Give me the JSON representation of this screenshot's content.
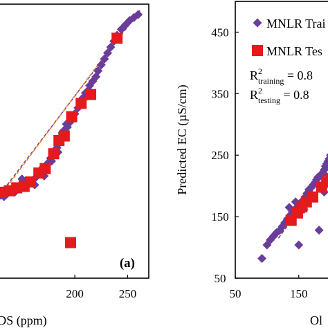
{
  "chart_data": [
    {
      "type": "scatter",
      "panel_label": "(a)",
      "xlabel": "TDS (ppm)",
      "visible_xlabel": "DS (ppm)",
      "xlim": [
        120,
        270
      ],
      "ylim": [
        100,
        470
      ],
      "x_ticks": [
        "200",
        "250"
      ],
      "x_tick_values": [
        200,
        250
      ],
      "grid": false,
      "series": [
        {
          "color": "#6a3d9a",
          "marker": "diamond",
          "points": [
            [
              122,
              205
            ],
            [
              126,
              208
            ],
            [
              130,
              212
            ],
            [
              133,
              210
            ],
            [
              136,
              214
            ],
            [
              140,
              218
            ],
            [
              143,
              216
            ],
            [
              146,
              220
            ],
            [
              149,
              223
            ],
            [
              152,
              226
            ],
            [
              155,
              229
            ],
            [
              158,
              228
            ],
            [
              160,
              232
            ],
            [
              163,
              236
            ],
            [
              165,
              240
            ],
            [
              168,
              246
            ],
            [
              170,
              250
            ],
            [
              173,
              252
            ],
            [
              175,
              256
            ],
            [
              177,
              262
            ],
            [
              179,
              266
            ],
            [
              181,
              272
            ],
            [
              183,
              276
            ],
            [
              185,
              282
            ],
            [
              186,
              290
            ],
            [
              188,
              296
            ],
            [
              189,
              292
            ],
            [
              190,
              300
            ],
            [
              193,
              304
            ],
            [
              195,
              310
            ],
            [
              198,
              316
            ],
            [
              200,
              322
            ],
            [
              203,
              330
            ],
            [
              205,
              336
            ],
            [
              208,
              344
            ],
            [
              210,
              350
            ],
            [
              212,
              346
            ],
            [
              214,
              360
            ],
            [
              217,
              366
            ],
            [
              220,
              372
            ],
            [
              222,
              380
            ],
            [
              225,
              388
            ],
            [
              228,
              396
            ],
            [
              231,
              404
            ],
            [
              234,
              412
            ],
            [
              237,
              420
            ],
            [
              240,
              428
            ],
            [
              244,
              436
            ],
            [
              248,
              442
            ],
            [
              252,
              448
            ],
            [
              256,
              452
            ],
            [
              260,
              456
            ],
            [
              150,
              234
            ],
            [
              162,
              226
            ],
            [
              171,
              238
            ],
            [
              178,
              258
            ],
            [
              184,
              270
            ],
            [
              192,
              308
            ],
            [
              196,
              318
            ],
            [
              207,
              338
            ],
            [
              213,
              354
            ]
          ]
        },
        {
          "color": "#e41a1c",
          "marker": "square",
          "points": [
            [
              124,
              210
            ],
            [
              130,
              216
            ],
            [
              138,
              218
            ],
            [
              145,
              222
            ],
            [
              152,
              224
            ],
            [
              158,
              230
            ],
            [
              166,
              242
            ],
            [
              172,
              248
            ],
            [
              180,
              268
            ],
            [
              185,
              286
            ],
            [
              190,
              292
            ],
            [
              197,
              318
            ],
            [
              206,
              336
            ],
            [
              215,
              348
            ],
            [
              240,
              424
            ],
            [
              196,
              148
            ]
          ]
        }
      ],
      "trend_lines": [
        {
          "color": "#6a3d9a",
          "style": "dashed",
          "x": [
            120,
            262
          ],
          "y": [
            196,
            462
          ]
        },
        {
          "color": "#f07f2a",
          "style": "dashed",
          "x": [
            120,
            250
          ],
          "y": [
            193,
            442
          ]
        }
      ]
    },
    {
      "type": "scatter",
      "xlabel": "Observed EC (µS/cm)",
      "visible_xlabel": "Ol",
      "ylabel": "Predicted EC (µS/cm)",
      "xlim": [
        50,
        220
      ],
      "ylim": [
        50,
        500
      ],
      "x_ticks": [
        "50",
        "150"
      ],
      "x_tick_values": [
        50,
        150
      ],
      "y_ticks": [
        "50",
        "150",
        "250",
        "350",
        "450"
      ],
      "y_tick_values": [
        50,
        150,
        250,
        350,
        450
      ],
      "grid": false,
      "legend": {
        "placement": "top-right",
        "entries": [
          "MNLR Trai",
          "MNLR Tes"
        ],
        "metrics": [
          {
            "prefix": "R",
            "sup": "2",
            "sub": "training",
            "suffix": " = 0.8"
          },
          {
            "prefix": "R",
            "sup": "2",
            "sub": "testing",
            "suffix": " = 0.8"
          }
        ]
      },
      "series": [
        {
          "color": "#6a3d9a",
          "marker": "diamond",
          "points": [
            [
              92,
              82
            ],
            [
              100,
              104
            ],
            [
              105,
              112
            ],
            [
              110,
              118
            ],
            [
              115,
              124
            ],
            [
              120,
              128
            ],
            [
              124,
              134
            ],
            [
              128,
              140
            ],
            [
              132,
              146
            ],
            [
              136,
              152
            ],
            [
              140,
              158
            ],
            [
              144,
              162
            ],
            [
              148,
              166
            ],
            [
              150,
              104
            ],
            [
              152,
              170
            ],
            [
              156,
              176
            ],
            [
              160,
              182
            ],
            [
              163,
              188
            ],
            [
              166,
              194
            ],
            [
              170,
              198
            ],
            [
              173,
              202
            ],
            [
              176,
              206
            ],
            [
              178,
              210
            ],
            [
              180,
              214
            ],
            [
              183,
              216
            ],
            [
              186,
              218
            ],
            [
              188,
              222
            ],
            [
              190,
              226
            ],
            [
              192,
              232
            ],
            [
              194,
              236
            ],
            [
              196,
              240
            ],
            [
              198,
              244
            ],
            [
              200,
              250
            ],
            [
              203,
              248
            ],
            [
              205,
              256
            ],
            [
              208,
              252
            ],
            [
              210,
              258
            ],
            [
              135,
              165
            ],
            [
              145,
              174
            ],
            [
              158,
              162
            ],
            [
              168,
              188
            ],
            [
              182,
              128
            ],
            [
              190,
              190
            ],
            [
              199,
              210
            ],
            [
              212,
              206
            ]
          ]
        },
        {
          "color": "#e41a1c",
          "marker": "square",
          "points": [
            [
              138,
              144
            ],
            [
              148,
              156
            ],
            [
              155,
              166
            ],
            [
              162,
              174
            ],
            [
              172,
              182
            ],
            [
              186,
              198
            ],
            [
              194,
              206
            ],
            [
              200,
              212
            ],
            [
              206,
              220
            ],
            [
              212,
              232
            ]
          ]
        }
      ],
      "trend_lines": [
        {
          "color": "#6a3d9a",
          "style": "dashed",
          "x": [
            118,
            220
          ],
          "y": [
            115,
            262
          ]
        }
      ]
    }
  ]
}
